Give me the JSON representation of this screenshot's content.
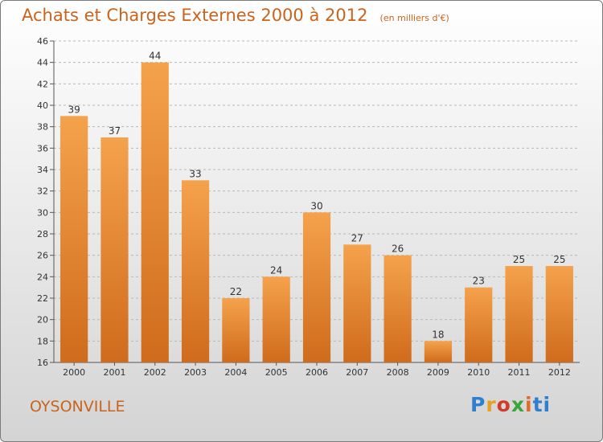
{
  "header": {
    "title": "Achats et Charges Externes 2000 à 2012",
    "subtitle": "(en milliers d'€)"
  },
  "footer": {
    "commune": "OYSONVILLE",
    "logo_text": "Proxiti"
  },
  "colors": {
    "accent": "#c8641e",
    "bar_light": "#f5a24c",
    "bar_dark": "#cf6b1c"
  },
  "chart_data": {
    "type": "bar",
    "categories": [
      "2000",
      "2001",
      "2002",
      "2003",
      "2004",
      "2005",
      "2006",
      "2007",
      "2008",
      "2009",
      "2010",
      "2011",
      "2012"
    ],
    "values": [
      39,
      37,
      44,
      33,
      22,
      24,
      30,
      27,
      26,
      18,
      23,
      25,
      25
    ],
    "title": "Achats et Charges Externes 2000 à 2012",
    "subtitle": "(en milliers d'€)",
    "xlabel": "",
    "ylabel": "",
    "ylim": [
      16,
      46
    ],
    "yticks": [
      16,
      18,
      20,
      22,
      24,
      26,
      28,
      30,
      32,
      34,
      36,
      38,
      40,
      42,
      44,
      46
    ],
    "grid": "horizontal dashed",
    "legend": "none",
    "data_labels": true
  }
}
